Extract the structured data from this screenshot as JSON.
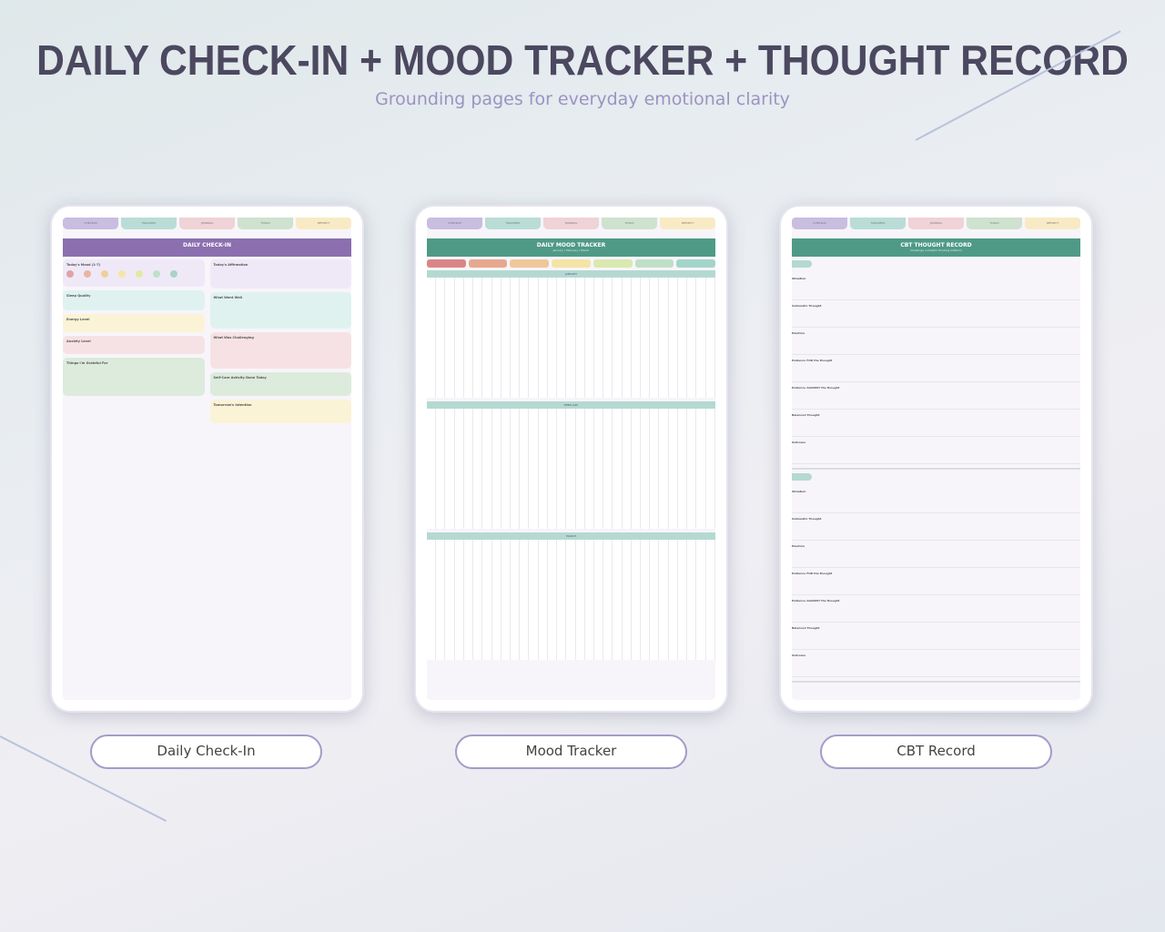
{
  "header": {
    "title": "DAILY CHECK-IN + MOOD TRACKER + THOUGHT RECORD",
    "subtitle": "Grounding pages for everyday emotional clarity"
  },
  "tabs": [
    "CHECK-IN",
    "TRACKERS",
    "JOURNAL",
    "TOOLS",
    "REFLECT"
  ],
  "tab_colors": [
    "#c9bde0",
    "#b9ddd6",
    "#efd3d6",
    "#cfe2cf",
    "#f8eac4"
  ],
  "checkin": {
    "title": "DAILY CHECK-IN",
    "color": "#8b6faf",
    "left": [
      {
        "label": "Today's Mood (1-7)",
        "color": "#efe9f7"
      },
      {
        "label": "Sleep Quality",
        "color": "#dff2ef"
      },
      {
        "label": "Energy Level",
        "color": "#fbf3d6"
      },
      {
        "label": "Anxiety Level",
        "color": "#f6e2e4"
      },
      {
        "label": "Things I'm Grateful For",
        "color": "#dcebdc"
      }
    ],
    "right": [
      {
        "label": "Today's Affirmation",
        "color": "#efe9f7"
      },
      {
        "label": "What Went Well",
        "color": "#dff2ef"
      },
      {
        "label": "What Was Challenging",
        "color": "#f6e2e4"
      },
      {
        "label": "Self-Care Activity Done Today",
        "color": "#dcebdc"
      },
      {
        "label": "Tomorrow's Intention",
        "color": "#fbf3d6"
      }
    ],
    "mood_colors": [
      "#e2a3a3",
      "#e8b6a3",
      "#f0cf9b",
      "#f2e6a6",
      "#e3ea9f",
      "#bfe0c9",
      "#a9d3c7"
    ]
  },
  "tracker": {
    "title": "DAILY MOOD TRACKER",
    "subtitle": "January / February / March",
    "color": "#4f9a86",
    "scale_colors": [
      "#d98686",
      "#e7a88f",
      "#efc79a",
      "#f4e4a5",
      "#d9e9b0",
      "#bfe0c6",
      "#a3d4ca"
    ],
    "months": [
      "JANUARY",
      "FEBRUARY",
      "MARCH"
    ]
  },
  "cbt": {
    "title": "CBT THOUGHT RECORD",
    "subtitle": "Challenge unhelpful thinking patterns",
    "color": "#4f9a86",
    "rows": [
      "Situation",
      "Automatic Thought",
      "Emotion",
      "Evidence FOR the thought",
      "Evidence AGAINST the thought",
      "Balanced Thought",
      "Outcome"
    ]
  },
  "labels": [
    "Daily Check-In",
    "Mood Tracker",
    "CBT Record"
  ]
}
